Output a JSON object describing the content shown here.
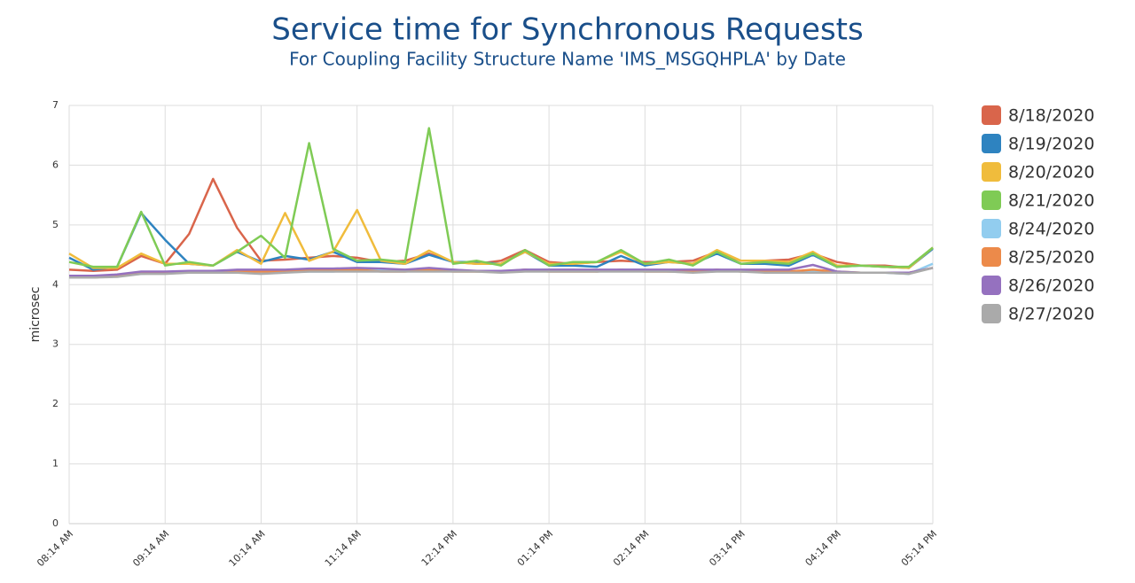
{
  "chart_data": {
    "type": "line",
    "title": "Service time for Synchronous Requests",
    "subtitle": "For Coupling Facility Structure Name 'IMS_MSGQHPLA' by Date",
    "y_label": "microsec",
    "categories": [
      "08:14 AM",
      null,
      null,
      null,
      "09:14 AM",
      null,
      null,
      null,
      "10:14 AM",
      null,
      null,
      null,
      "11:14 AM",
      null,
      null,
      null,
      "12:14 PM",
      null,
      null,
      null,
      "01:14 PM",
      null,
      null,
      null,
      "02:14 PM",
      null,
      null,
      null,
      "03:14 PM",
      null,
      null,
      null,
      "04:14 PM",
      null,
      null,
      null,
      "05:14 PM"
    ],
    "ylim": [
      0,
      7
    ],
    "yticks": [
      0,
      1,
      2,
      3,
      4,
      5,
      6,
      7
    ],
    "grid": true,
    "legend": "right",
    "series": [
      {
        "name": "8/18/2020",
        "color": "#d9654b",
        "values": [
          4.25,
          4.23,
          4.25,
          4.48,
          4.35,
          4.85,
          5.77,
          4.95,
          4.4,
          4.42,
          4.45,
          4.48,
          4.45,
          4.38,
          4.4,
          4.52,
          4.38,
          4.35,
          4.4,
          4.58,
          4.38,
          4.35,
          4.38,
          4.4,
          4.38,
          4.38,
          4.4,
          4.55,
          4.4,
          4.4,
          4.42,
          4.52,
          4.38,
          4.32,
          4.32,
          4.28,
          4.62
        ]
      },
      {
        "name": "8/19/2020",
        "color": "#2e83c0",
        "values": [
          4.45,
          4.25,
          4.3,
          5.2,
          4.75,
          4.35,
          4.32,
          4.55,
          4.38,
          4.48,
          4.42,
          4.55,
          4.38,
          4.38,
          4.35,
          4.5,
          4.38,
          4.38,
          4.35,
          4.55,
          4.32,
          4.32,
          4.3,
          4.48,
          4.32,
          4.38,
          4.35,
          4.52,
          4.35,
          4.35,
          4.32,
          4.5,
          4.3,
          4.32,
          4.3,
          4.28,
          4.6
        ]
      },
      {
        "name": "8/20/2020",
        "color": "#f0bc3c",
        "values": [
          4.52,
          4.28,
          4.28,
          4.52,
          4.35,
          4.35,
          4.32,
          4.58,
          4.35,
          5.2,
          4.4,
          4.55,
          5.25,
          4.4,
          4.35,
          4.57,
          4.38,
          4.35,
          4.35,
          4.55,
          4.35,
          4.35,
          4.38,
          4.55,
          4.35,
          4.38,
          4.35,
          4.58,
          4.4,
          4.4,
          4.38,
          4.55,
          4.32,
          4.32,
          4.3,
          4.28,
          4.62
        ]
      },
      {
        "name": "8/21/2020",
        "color": "#7fcb55",
        "values": [
          4.38,
          4.3,
          4.3,
          5.22,
          4.32,
          4.38,
          4.32,
          4.55,
          4.82,
          4.45,
          6.37,
          4.6,
          4.4,
          4.42,
          4.38,
          6.62,
          4.35,
          4.4,
          4.32,
          4.58,
          4.32,
          4.38,
          4.38,
          4.58,
          4.35,
          4.42,
          4.32,
          4.55,
          4.35,
          4.38,
          4.35,
          4.52,
          4.3,
          4.32,
          4.3,
          4.3,
          4.62
        ]
      },
      {
        "name": "8/24/2020",
        "color": "#92cdef",
        "values": [
          4.12,
          4.12,
          4.15,
          4.18,
          4.2,
          4.2,
          4.22,
          4.22,
          4.2,
          4.22,
          4.22,
          4.22,
          4.25,
          4.25,
          4.25,
          4.25,
          4.25,
          4.22,
          4.22,
          4.25,
          4.25,
          4.25,
          4.22,
          4.25,
          4.25,
          4.22,
          4.22,
          4.25,
          4.22,
          4.22,
          4.22,
          4.22,
          4.2,
          4.2,
          4.2,
          4.18,
          4.35
        ]
      },
      {
        "name": "8/25/2020",
        "color": "#ec8a4a",
        "values": [
          4.12,
          4.12,
          4.15,
          4.2,
          4.2,
          4.22,
          4.22,
          4.22,
          4.22,
          4.22,
          4.25,
          4.25,
          4.25,
          4.22,
          4.22,
          4.25,
          4.22,
          4.22,
          4.22,
          4.25,
          4.22,
          4.22,
          4.22,
          4.25,
          4.22,
          4.22,
          4.22,
          4.25,
          4.22,
          4.22,
          4.22,
          4.25,
          4.22,
          4.2,
          4.2,
          4.2,
          4.28
        ]
      },
      {
        "name": "8/26/2020",
        "color": "#9571bf",
        "values": [
          4.15,
          4.15,
          4.17,
          4.22,
          4.22,
          4.23,
          4.23,
          4.25,
          4.25,
          4.25,
          4.27,
          4.27,
          4.28,
          4.27,
          4.25,
          4.28,
          4.25,
          4.23,
          4.23,
          4.25,
          4.25,
          4.25,
          4.25,
          4.25,
          4.25,
          4.25,
          4.25,
          4.25,
          4.25,
          4.25,
          4.25,
          4.33,
          4.22,
          4.2,
          4.2,
          4.2,
          4.28
        ]
      },
      {
        "name": "8/27/2020",
        "color": "#aaaaaa",
        "values": [
          4.12,
          4.12,
          4.13,
          4.18,
          4.18,
          4.2,
          4.2,
          4.2,
          4.18,
          4.2,
          4.22,
          4.22,
          4.22,
          4.22,
          4.22,
          4.22,
          4.22,
          4.22,
          4.2,
          4.22,
          4.22,
          4.22,
          4.22,
          4.22,
          4.22,
          4.22,
          4.2,
          4.22,
          4.22,
          4.2,
          4.2,
          4.2,
          4.2,
          4.2,
          4.2,
          4.18,
          4.28
        ]
      }
    ]
  }
}
